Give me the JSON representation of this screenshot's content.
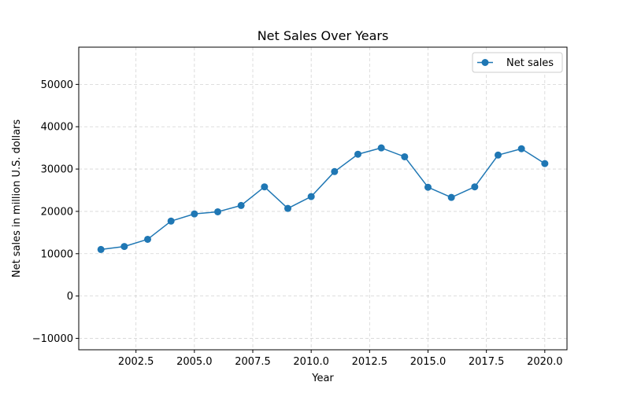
{
  "chart_data": {
    "type": "line",
    "title": "Net Sales Over Years",
    "xlabel": "Year",
    "ylabel": "Net sales in million U.S. dollars",
    "xlim": [
      2000.05,
      2020.95
    ],
    "ylim": [
      -12700,
      58800
    ],
    "xticks": [
      2002.5,
      2005.0,
      2007.5,
      2010.0,
      2012.5,
      2015.0,
      2017.5,
      2020.0
    ],
    "xtick_labels": [
      "2002.5",
      "2005.0",
      "2007.5",
      "2010.0",
      "2012.5",
      "2015.0",
      "2017.5",
      "2020.0"
    ],
    "yticks": [
      -10000,
      0,
      10000,
      20000,
      30000,
      40000,
      50000
    ],
    "ytick_labels": [
      "−10000",
      "0",
      "10000",
      "20000",
      "30000",
      "40000",
      "50000"
    ],
    "grid": true,
    "legend_position": "top-right",
    "series": [
      {
        "name": "Net sales",
        "color": "#1f77b4",
        "marker": "circle",
        "x": [
          2001,
          2002,
          2003,
          2004,
          2005,
          2006,
          2007,
          2008,
          2009,
          2010,
          2011,
          2012,
          2013,
          2014,
          2015,
          2016,
          2017,
          2018,
          2019,
          2020
        ],
        "y": [
          11000,
          11700,
          13400,
          17700,
          19400,
          19900,
          21400,
          25800,
          20700,
          23500,
          29400,
          33500,
          35000,
          32900,
          25700,
          23300,
          25800,
          33300,
          34800,
          31300
        ]
      }
    ]
  }
}
